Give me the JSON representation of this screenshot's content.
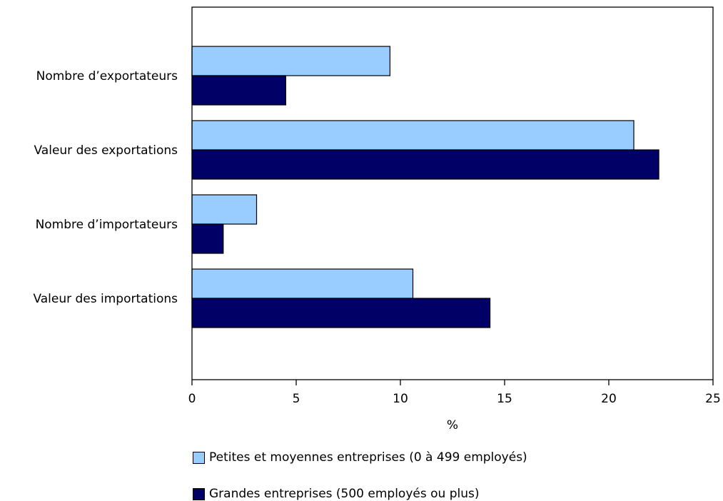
{
  "chart_data": {
    "type": "bar",
    "orientation": "horizontal",
    "title": "",
    "xlabel": "%",
    "ylabel": "",
    "categories": [
      "Nombre d’exportateurs",
      "Valeur des exportations",
      "Nombre d’importateurs",
      "Valeur des importations"
    ],
    "series": [
      {
        "name": "Petites et moyennes entreprises (0 à 499 employés)",
        "color": "#99ccff",
        "values": [
          9.5,
          21.2,
          3.1,
          10.6
        ]
      },
      {
        "name": "Grandes entreprises (500 employés ou plus)",
        "color": "#000066",
        "values": [
          4.5,
          22.4,
          1.5,
          14.3
        ]
      }
    ],
    "xlim": [
      0,
      25
    ],
    "xticks": [
      0,
      5,
      10,
      15,
      20,
      25
    ],
    "grid": false,
    "legend_position": "bottom"
  }
}
